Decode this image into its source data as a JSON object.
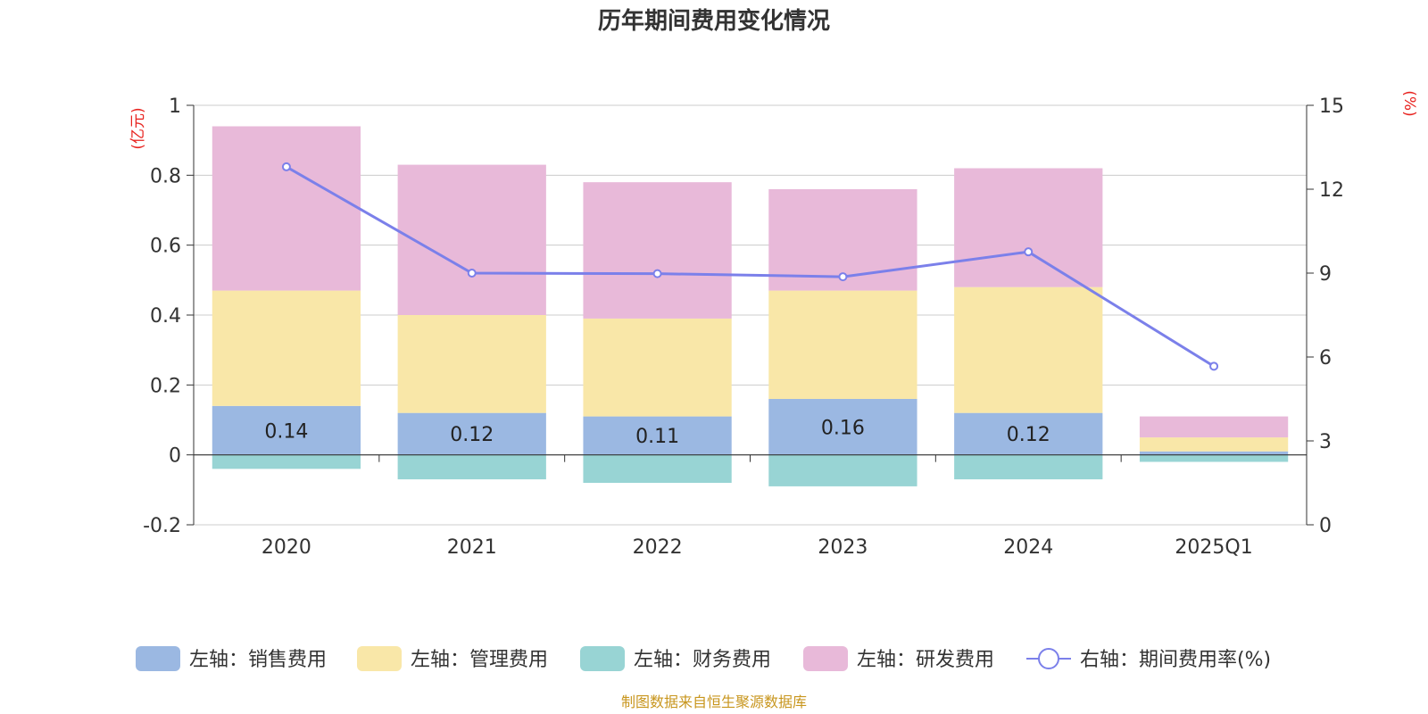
{
  "chart_data": {
    "type": "bar",
    "title": "历年期间费用变化情况",
    "categories": [
      "2020",
      "2021",
      "2022",
      "2023",
      "2024",
      "2025Q1"
    ],
    "y_left": {
      "unit": "(亿元)",
      "range": [
        -0.2,
        1
      ],
      "ticks": [
        "-0.2",
        "0",
        "0.2",
        "0.4",
        "0.6",
        "0.8",
        "1"
      ]
    },
    "y_right": {
      "unit": "(%)",
      "range": [
        0,
        15
      ],
      "ticks": [
        "0",
        "3",
        "6",
        "9",
        "12",
        "15"
      ]
    },
    "grid": true,
    "legend_position": "bottom",
    "series": [
      {
        "name": "左轴：销售费用",
        "axis": "left",
        "type": "bar",
        "color": "#9bb8e2",
        "values": [
          0.14,
          0.12,
          0.11,
          0.16,
          0.12,
          0.01
        ],
        "labels": [
          "0.14",
          "0.12",
          "0.11",
          "0.16",
          "0.12",
          ""
        ]
      },
      {
        "name": "左轴：管理费用",
        "axis": "left",
        "type": "bar",
        "color": "#f9e7a8",
        "values": [
          0.33,
          0.28,
          0.28,
          0.31,
          0.36,
          0.04
        ]
      },
      {
        "name": "左轴：财务费用",
        "axis": "left",
        "type": "bar",
        "color": "#98d4d4",
        "values": [
          -0.04,
          -0.07,
          -0.08,
          -0.09,
          -0.07,
          -0.02
        ]
      },
      {
        "name": "左轴：研发费用",
        "axis": "left",
        "type": "bar",
        "color": "#e8b9d9",
        "values": [
          0.47,
          0.43,
          0.39,
          0.29,
          0.34,
          0.06
        ]
      },
      {
        "name": "右轴：期间费用率(%)",
        "axis": "right",
        "type": "line",
        "color": "#7b80ea",
        "values": [
          12.8,
          9.0,
          8.98,
          8.87,
          9.76,
          5.67
        ]
      }
    ]
  },
  "source": "制图数据来自恒生聚源数据库"
}
